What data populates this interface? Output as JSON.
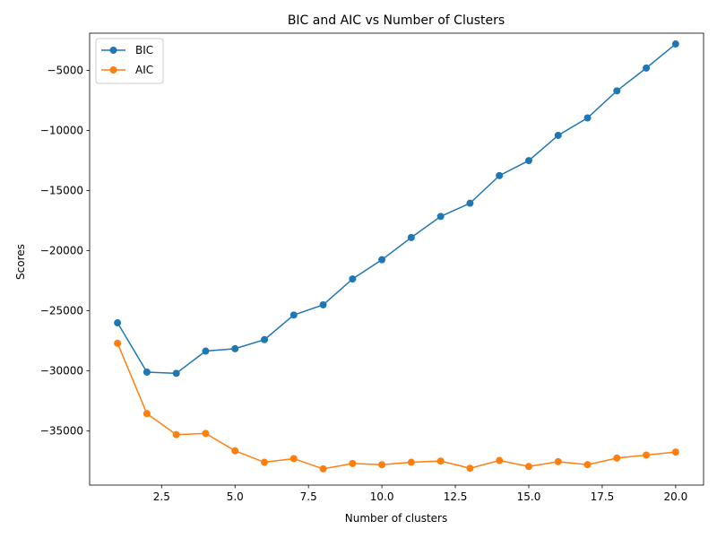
{
  "chart_data": {
    "type": "line",
    "title": "BIC and AIC vs Number of Clusters",
    "xlabel": "Number of clusters",
    "ylabel": "Scores",
    "xlim": [
      0.05,
      20.95
    ],
    "ylim": [
      -39500,
      -1900
    ],
    "x_ticks": [
      2.5,
      5.0,
      7.5,
      10.0,
      12.5,
      15.0,
      17.5,
      20.0
    ],
    "x_tick_labels": [
      "2.5",
      "5.0",
      "7.5",
      "10.0",
      "12.5",
      "15.0",
      "17.5",
      "20.0"
    ],
    "y_ticks": [
      -35000,
      -30000,
      -25000,
      -20000,
      -15000,
      -10000,
      -5000
    ],
    "y_tick_labels": [
      "−35000",
      "−30000",
      "−25000",
      "−20000",
      "−15000",
      "−10000",
      "−5000"
    ],
    "grid": false,
    "legend_position": "top-left",
    "x": [
      1,
      2,
      3,
      4,
      5,
      6,
      7,
      8,
      9,
      10,
      11,
      12,
      13,
      14,
      15,
      16,
      17,
      18,
      19,
      20
    ],
    "series": [
      {
        "name": "BIC",
        "color": "#1f77b4",
        "values": [
          -26000,
          -30100,
          -30200,
          -28350,
          -28150,
          -27400,
          -25350,
          -24500,
          -22350,
          -20750,
          -18900,
          -17150,
          -16050,
          -13750,
          -12500,
          -10400,
          -8950,
          -6700,
          -4800,
          -2800
        ]
      },
      {
        "name": "AIC",
        "color": "#ff7f0e",
        "values": [
          -27700,
          -33550,
          -35300,
          -35200,
          -36650,
          -37600,
          -37300,
          -38150,
          -37700,
          -37800,
          -37600,
          -37500,
          -38100,
          -37450,
          -37950,
          -37550,
          -37800,
          -37250,
          -37000,
          -36750
        ]
      }
    ]
  }
}
